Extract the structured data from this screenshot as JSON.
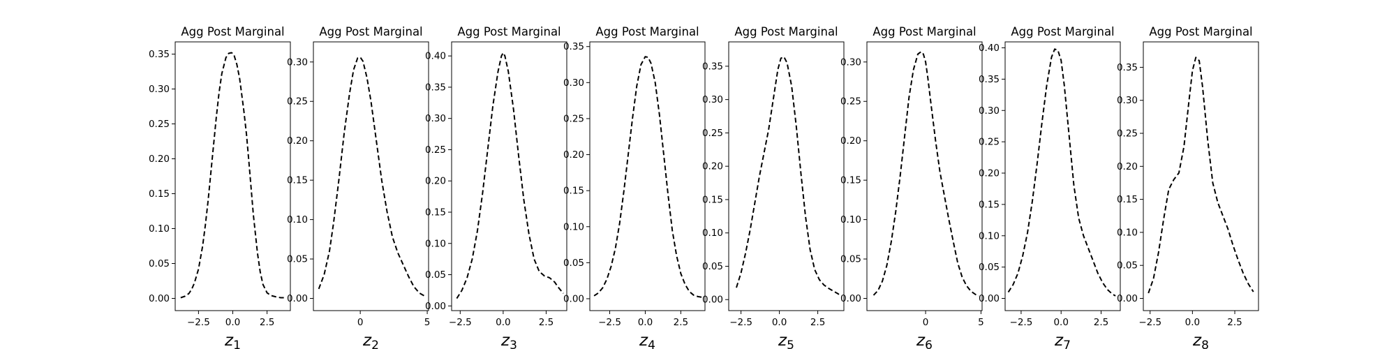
{
  "chart_data": [
    {
      "type": "line",
      "title": "Agg Post Marginal",
      "xlabel_var": "z",
      "xlabel_sub": "1",
      "xlim": [
        -4.2,
        4.2
      ],
      "ylim": [
        -0.0175,
        0.3675
      ],
      "xticks": [
        -2.5,
        0.0,
        2.5
      ],
      "xtick_labels": [
        "−2.5",
        "0.0",
        "2.5"
      ],
      "yticks": [
        0.0,
        0.05,
        0.1,
        0.15,
        0.2,
        0.25,
        0.3,
        0.35
      ],
      "ytick_labels": [
        "0.00",
        "0.05",
        "0.10",
        "0.15",
        "0.20",
        "0.25",
        "0.30",
        "0.35"
      ],
      "series": [
        {
          "style": "dashed",
          "color": "#000000",
          "x": [
            -3.8,
            -3.5,
            -3.2,
            -3.0,
            -2.8,
            -2.5,
            -2.2,
            -2.0,
            -1.8,
            -1.5,
            -1.2,
            -1.0,
            -0.8,
            -0.5,
            -0.3,
            -0.1,
            0.0,
            0.1,
            0.3,
            0.5,
            0.8,
            1.0,
            1.2,
            1.5,
            1.8,
            2.0,
            2.2,
            2.5,
            2.8,
            3.0,
            3.2,
            3.5,
            3.8
          ],
          "y": [
            0.001,
            0.003,
            0.007,
            0.013,
            0.022,
            0.042,
            0.075,
            0.105,
            0.14,
            0.2,
            0.26,
            0.295,
            0.322,
            0.345,
            0.351,
            0.352,
            0.351,
            0.348,
            0.335,
            0.315,
            0.27,
            0.235,
            0.19,
            0.12,
            0.065,
            0.038,
            0.02,
            0.008,
            0.004,
            0.003,
            0.002,
            0.001,
            0.001
          ]
        }
      ]
    },
    {
      "type": "line",
      "title": "Agg Post Marginal",
      "xlabel_var": "z",
      "xlabel_sub": "2",
      "xlim": [
        -3.5,
        5.1
      ],
      "ylim": [
        -0.0155,
        0.3255
      ],
      "xticks": [
        0,
        5
      ],
      "xtick_labels": [
        "0",
        "5"
      ],
      "yticks": [
        0.0,
        0.05,
        0.1,
        0.15,
        0.2,
        0.25,
        0.3
      ],
      "ytick_labels": [
        "0.00",
        "0.05",
        "0.10",
        "0.15",
        "0.20",
        "0.25",
        "0.30"
      ],
      "series": [
        {
          "style": "dashed",
          "color": "#000000",
          "x": [
            -3.1,
            -2.7,
            -2.3,
            -2.0,
            -1.6,
            -1.2,
            -0.8,
            -0.5,
            -0.2,
            0.0,
            0.2,
            0.5,
            0.8,
            1.2,
            1.6,
            2.0,
            2.4,
            2.8,
            3.2,
            3.6,
            4.0,
            4.4,
            4.8
          ],
          "y": [
            0.012,
            0.03,
            0.06,
            0.095,
            0.15,
            0.21,
            0.26,
            0.29,
            0.305,
            0.306,
            0.301,
            0.28,
            0.25,
            0.2,
            0.15,
            0.11,
            0.078,
            0.058,
            0.043,
            0.028,
            0.015,
            0.007,
            0.003
          ]
        }
      ]
    },
    {
      "type": "line",
      "title": "Agg Post Marginal",
      "xlabel_var": "z",
      "xlabel_sub": "3",
      "xlim": [
        -3.0,
        3.7
      ],
      "ylim": [
        -0.0075,
        0.4225
      ],
      "xticks": [
        -2.5,
        0.0,
        2.5
      ],
      "xtick_labels": [
        "−2.5",
        "0.0",
        "2.5"
      ],
      "yticks": [
        0.0,
        0.05,
        0.1,
        0.15,
        0.2,
        0.25,
        0.3,
        0.35,
        0.4
      ],
      "ytick_labels": [
        "0.00",
        "0.05",
        "0.10",
        "0.15",
        "0.20",
        "0.25",
        "0.30",
        "0.35",
        "0.40"
      ],
      "series": [
        {
          "style": "dashed",
          "color": "#000000",
          "x": [
            -2.7,
            -2.4,
            -2.1,
            -1.8,
            -1.5,
            -1.2,
            -0.9,
            -0.6,
            -0.3,
            -0.1,
            0.0,
            0.1,
            0.3,
            0.6,
            0.9,
            1.2,
            1.5,
            1.8,
            2.1,
            2.4,
            2.7,
            3.0,
            3.2,
            3.5
          ],
          "y": [
            0.012,
            0.025,
            0.045,
            0.075,
            0.12,
            0.18,
            0.25,
            0.32,
            0.375,
            0.4,
            0.405,
            0.4,
            0.375,
            0.315,
            0.24,
            0.17,
            0.115,
            0.075,
            0.055,
            0.048,
            0.045,
            0.038,
            0.03,
            0.02
          ]
        }
      ]
    },
    {
      "type": "line",
      "title": "Agg Post Marginal",
      "xlabel_var": "z",
      "xlabel_sub": "4",
      "xlim": [
        -3.9,
        4.2
      ],
      "ylim": [
        -0.0165,
        0.3565
      ],
      "xticks": [
        -2.5,
        0.0,
        2.5
      ],
      "xtick_labels": [
        "−2.5",
        "0.0",
        "2.5"
      ],
      "yticks": [
        0.0,
        0.05,
        0.1,
        0.15,
        0.2,
        0.25,
        0.3,
        0.35
      ],
      "ytick_labels": [
        "0.00",
        "0.05",
        "0.10",
        "0.15",
        "0.20",
        "0.25",
        "0.30",
        "0.35"
      ],
      "series": [
        {
          "style": "dashed",
          "color": "#000000",
          "x": [
            -3.6,
            -3.3,
            -3.0,
            -2.7,
            -2.4,
            -2.1,
            -1.8,
            -1.5,
            -1.2,
            -0.9,
            -0.6,
            -0.3,
            0.0,
            0.2,
            0.4,
            0.7,
            1.0,
            1.3,
            1.6,
            1.9,
            2.2,
            2.5,
            2.8,
            3.1,
            3.4,
            3.7,
            4.0
          ],
          "y": [
            0.004,
            0.008,
            0.015,
            0.027,
            0.045,
            0.07,
            0.105,
            0.15,
            0.2,
            0.25,
            0.295,
            0.325,
            0.336,
            0.335,
            0.327,
            0.3,
            0.255,
            0.2,
            0.145,
            0.095,
            0.06,
            0.035,
            0.02,
            0.01,
            0.005,
            0.003,
            0.002
          ]
        }
      ]
    },
    {
      "type": "line",
      "title": "Agg Post Marginal",
      "xlabel_var": "z",
      "xlabel_sub": "5",
      "xlim": [
        -3.3,
        4.2
      ],
      "ylim": [
        -0.0165,
        0.3865
      ],
      "xticks": [
        -2.5,
        0.0,
        2.5
      ],
      "xtick_labels": [
        "−2.5",
        "0.0",
        "2.5"
      ],
      "yticks": [
        0.0,
        0.05,
        0.1,
        0.15,
        0.2,
        0.25,
        0.3,
        0.35
      ],
      "ytick_labels": [
        "0.00",
        "0.05",
        "0.10",
        "0.15",
        "0.20",
        "0.25",
        "0.30",
        "0.35"
      ],
      "series": [
        {
          "style": "dashed",
          "color": "#000000",
          "x": [
            -2.8,
            -2.5,
            -2.2,
            -1.9,
            -1.6,
            -1.3,
            -1.0,
            -0.7,
            -0.4,
            -0.1,
            0.1,
            0.3,
            0.5,
            0.8,
            1.1,
            1.4,
            1.7,
            2.0,
            2.3,
            2.6,
            2.9,
            3.2,
            3.5,
            3.8,
            4.0
          ],
          "y": [
            0.018,
            0.04,
            0.07,
            0.105,
            0.145,
            0.185,
            0.22,
            0.255,
            0.3,
            0.345,
            0.362,
            0.364,
            0.355,
            0.32,
            0.26,
            0.19,
            0.125,
            0.075,
            0.045,
            0.03,
            0.022,
            0.017,
            0.013,
            0.009,
            0.006
          ]
        }
      ]
    },
    {
      "type": "line",
      "title": "Agg Post Marginal",
      "xlabel_var": "z",
      "xlabel_sub": "6",
      "xlim": [
        -5.3,
        5.1
      ],
      "ylim": [
        -0.0155,
        0.3255
      ],
      "xticks": [
        0,
        5
      ],
      "xtick_labels": [
        "0",
        "5"
      ],
      "yticks": [
        0.0,
        0.05,
        0.1,
        0.15,
        0.2,
        0.25,
        0.3
      ],
      "ytick_labels": [
        "0.00",
        "0.05",
        "0.10",
        "0.15",
        "0.20",
        "0.25",
        "0.30"
      ],
      "series": [
        {
          "style": "dashed",
          "color": "#000000",
          "x": [
            -4.7,
            -4.3,
            -3.9,
            -3.5,
            -3.1,
            -2.7,
            -2.3,
            -1.9,
            -1.5,
            -1.1,
            -0.7,
            -0.4,
            -0.2,
            0.0,
            0.2,
            0.5,
            0.9,
            1.3,
            1.7,
            2.1,
            2.5,
            2.9,
            3.3,
            3.7,
            4.1,
            4.5,
            4.8
          ],
          "y": [
            0.004,
            0.01,
            0.022,
            0.042,
            0.072,
            0.11,
            0.155,
            0.205,
            0.255,
            0.29,
            0.31,
            0.313,
            0.31,
            0.3,
            0.28,
            0.245,
            0.2,
            0.16,
            0.13,
            0.1,
            0.072,
            0.045,
            0.027,
            0.016,
            0.009,
            0.005,
            0.003
          ]
        }
      ]
    },
    {
      "type": "line",
      "title": "Agg Post Marginal",
      "xlabel_var": "z",
      "xlabel_sub": "7",
      "xlim": [
        -3.5,
        3.7
      ],
      "ylim": [
        -0.0195,
        0.4095
      ],
      "xticks": [
        -2.5,
        0.0,
        2.5
      ],
      "xtick_labels": [
        "−2.5",
        "0.0",
        "2.5"
      ],
      "yticks": [
        0.0,
        0.05,
        0.1,
        0.15,
        0.2,
        0.25,
        0.3,
        0.35,
        0.4
      ],
      "ytick_labels": [
        "0.00",
        "0.05",
        "0.10",
        "0.15",
        "0.20",
        "0.25",
        "0.30",
        "0.35",
        "0.40"
      ],
      "series": [
        {
          "style": "dashed",
          "color": "#000000",
          "x": [
            -3.3,
            -3.0,
            -2.7,
            -2.4,
            -2.1,
            -1.8,
            -1.5,
            -1.2,
            -0.9,
            -0.6,
            -0.4,
            -0.2,
            0.0,
            0.2,
            0.5,
            0.8,
            1.1,
            1.4,
            1.7,
            2.0,
            2.3,
            2.6,
            2.9,
            3.2,
            3.4
          ],
          "y": [
            0.01,
            0.022,
            0.04,
            0.068,
            0.105,
            0.155,
            0.215,
            0.28,
            0.34,
            0.385,
            0.398,
            0.396,
            0.38,
            0.34,
            0.26,
            0.18,
            0.128,
            0.1,
            0.08,
            0.06,
            0.04,
            0.025,
            0.014,
            0.007,
            0.004
          ]
        }
      ]
    },
    {
      "type": "line",
      "title": "Agg Post Marginal",
      "xlabel_var": "z",
      "xlabel_sub": "8",
      "xlim": [
        -2.9,
        3.9
      ],
      "ylim": [
        -0.0185,
        0.3885
      ],
      "xticks": [
        -2.5,
        0.0,
        2.5
      ],
      "xtick_labels": [
        "−2.5",
        "0.0",
        "2.5"
      ],
      "yticks": [
        0.0,
        0.05,
        0.1,
        0.15,
        0.2,
        0.25,
        0.3,
        0.35
      ],
      "ytick_labels": [
        "0.00",
        "0.05",
        "0.10",
        "0.15",
        "0.20",
        "0.25",
        "0.30",
        "0.35"
      ],
      "series": [
        {
          "style": "dashed",
          "color": "#000000",
          "x": [
            -2.6,
            -2.3,
            -2.0,
            -1.7,
            -1.4,
            -1.1,
            -0.8,
            -0.5,
            -0.2,
            0.0,
            0.2,
            0.4,
            0.6,
            0.9,
            1.2,
            1.5,
            1.8,
            2.1,
            2.4,
            2.7,
            3.0,
            3.3,
            3.6
          ],
          "y": [
            0.008,
            0.03,
            0.07,
            0.12,
            0.165,
            0.18,
            0.19,
            0.23,
            0.3,
            0.345,
            0.365,
            0.36,
            0.32,
            0.24,
            0.175,
            0.145,
            0.125,
            0.105,
            0.08,
            0.058,
            0.038,
            0.022,
            0.01
          ]
        }
      ]
    }
  ]
}
